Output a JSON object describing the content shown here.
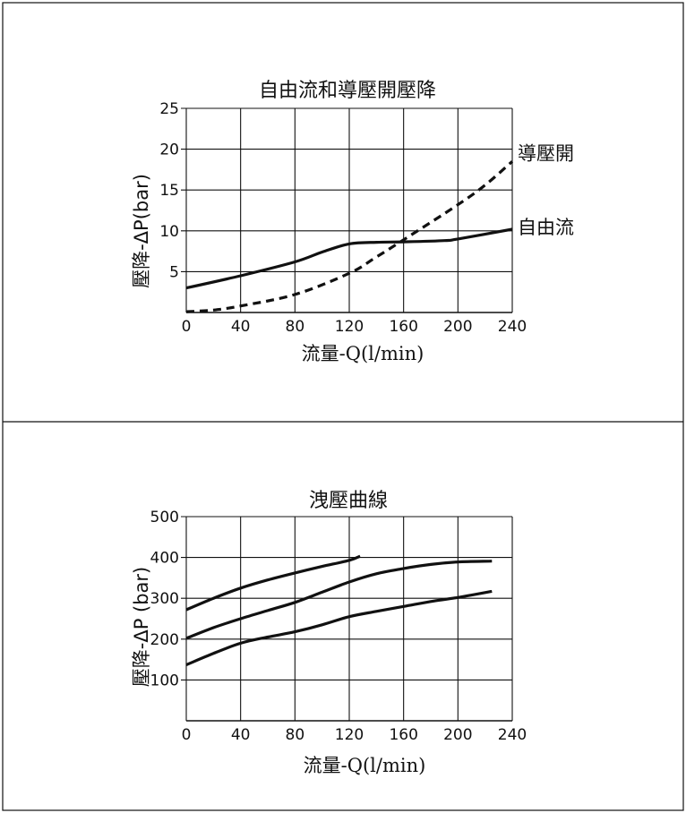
{
  "colors": {
    "line": "#111111",
    "grid": "#111111",
    "background": "#ffffff"
  },
  "chart_data": [
    {
      "type": "line",
      "title": "自由流和導壓開壓降",
      "xlabel": "流量-Q(l/min)",
      "ylabel": "壓降-ΔP(bar)",
      "xlim": [
        0,
        240
      ],
      "ylim": [
        0,
        25
      ],
      "x_ticks": [
        "0",
        "40",
        "80",
        "120",
        "160",
        "200",
        "240"
      ],
      "y_ticks": [
        "5",
        "10",
        "15",
        "20",
        "25"
      ],
      "grid": true,
      "series": [
        {
          "name": "自由流",
          "style": "solid",
          "points": [
            [
              0,
              3.0
            ],
            [
              40,
              4.5
            ],
            [
              80,
              6.2
            ],
            [
              100,
              7.4
            ],
            [
              120,
              8.4
            ],
            [
              140,
              8.6
            ],
            [
              160,
              8.65
            ],
            [
              190,
              8.8
            ],
            [
              200,
              9.0
            ],
            [
              240,
              10.2
            ]
          ]
        },
        {
          "name": "導壓開",
          "style": "dashed",
          "points": [
            [
              0,
              0.1
            ],
            [
              20,
              0.3
            ],
            [
              40,
              0.8
            ],
            [
              80,
              2.2
            ],
            [
              120,
              4.8
            ],
            [
              140,
              6.8
            ],
            [
              160,
              8.9
            ],
            [
              200,
              13.2
            ],
            [
              220,
              15.6
            ],
            [
              240,
              18.5
            ]
          ]
        }
      ]
    },
    {
      "type": "line",
      "title": "洩壓曲線",
      "xlabel": "流量-Q(l/min)",
      "ylabel": "壓降-ΔP (bar)",
      "xlim": [
        0,
        240
      ],
      "ylim": [
        0,
        500
      ],
      "x_ticks": [
        "0",
        "40",
        "80",
        "120",
        "160",
        "200",
        "240"
      ],
      "y_ticks": [
        "100",
        "200",
        "300",
        "400",
        "500"
      ],
      "grid": true,
      "series": [
        {
          "points": [
            [
              0,
              272
            ],
            [
              20,
              300
            ],
            [
              40,
              325
            ],
            [
              60,
              345
            ],
            [
              80,
              362
            ],
            [
              100,
              378
            ],
            [
              120,
              393
            ],
            [
              128,
              403
            ]
          ]
        },
        {
          "points": [
            [
              0,
              202
            ],
            [
              20,
              228
            ],
            [
              40,
              250
            ],
            [
              60,
              270
            ],
            [
              80,
              290
            ],
            [
              100,
              315
            ],
            [
              120,
              340
            ],
            [
              140,
              360
            ],
            [
              160,
              373
            ],
            [
              180,
              383
            ],
            [
              200,
              389
            ],
            [
              225,
              391
            ]
          ]
        },
        {
          "points": [
            [
              0,
              137
            ],
            [
              20,
              165
            ],
            [
              40,
              190
            ],
            [
              60,
              205
            ],
            [
              80,
              218
            ],
            [
              100,
              235
            ],
            [
              120,
              255
            ],
            [
              140,
              268
            ],
            [
              160,
              280
            ],
            [
              180,
              292
            ],
            [
              200,
              302
            ],
            [
              225,
              317
            ]
          ]
        }
      ]
    }
  ]
}
